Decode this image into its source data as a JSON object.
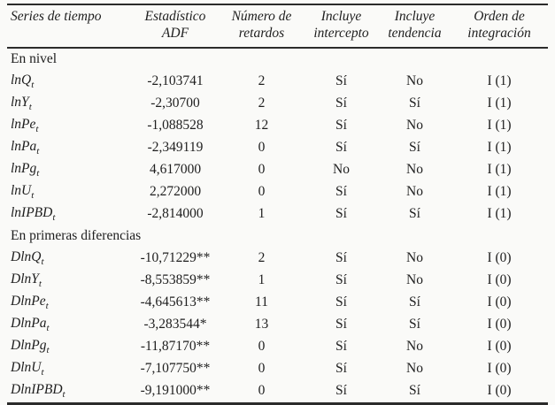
{
  "table": {
    "headers": [
      "Series de tiempo",
      "Estadístico ADF",
      "Número de retardos",
      "Incluye intercepto",
      "Incluye tendencia",
      "Orden de integración"
    ],
    "sections": [
      {
        "label": "En nivel",
        "rows": [
          {
            "series": "lnQ",
            "sub": "t",
            "adf": "-2,103741",
            "lags": "2",
            "intercept": "Sí",
            "trend": "No",
            "order": "I (1)"
          },
          {
            "series": "lnY",
            "sub": "t",
            "adf": "-2,30700",
            "lags": "2",
            "intercept": "Sí",
            "trend": "Sí",
            "order": "I (1)"
          },
          {
            "series": "lnPe",
            "sub": "t",
            "adf": "-1,088528",
            "lags": "12",
            "intercept": "Sí",
            "trend": "No",
            "order": "I (1)"
          },
          {
            "series": "lnPa",
            "sub": "t",
            "adf": "-2,349119",
            "lags": "0",
            "intercept": "Sí",
            "trend": "Sí",
            "order": "I (1)"
          },
          {
            "series": "lnPg",
            "sub": "t",
            "adf": "4,617000",
            "lags": "0",
            "intercept": "No",
            "trend": "No",
            "order": "I (1)"
          },
          {
            "series": "lnU",
            "sub": "t",
            "adf": "2,272000",
            "lags": "0",
            "intercept": "Sí",
            "trend": "No",
            "order": "I (1)"
          },
          {
            "series": "lnIPBD",
            "sub": "t",
            "adf": "-2,814000",
            "lags": "1",
            "intercept": "Sí",
            "trend": "Sí",
            "order": "I (1)"
          }
        ]
      },
      {
        "label": "En primeras diferencias",
        "rows": [
          {
            "series": "DlnQ",
            "sub": "t",
            "adf": "-10,71229**",
            "lags": "2",
            "intercept": "Sí",
            "trend": "No",
            "order": "I (0)"
          },
          {
            "series": "DlnY",
            "sub": "t",
            "adf": "-8,553859**",
            "lags": "1",
            "intercept": "Sí",
            "trend": "No",
            "order": "I (0)"
          },
          {
            "series": "DlnPe",
            "sub": "t",
            "adf": "-4,645613**",
            "lags": "11",
            "intercept": "Sí",
            "trend": "Sí",
            "order": "I (0)"
          },
          {
            "series": "DlnPa",
            "sub": "t",
            "adf": "-3,283544*",
            "lags": "13",
            "intercept": "Sí",
            "trend": "Sí",
            "order": "I (0)"
          },
          {
            "series": "DlnPg",
            "sub": "t",
            "adf": "-11,87170**",
            "lags": "0",
            "intercept": "Sí",
            "trend": "No",
            "order": "I (0)"
          },
          {
            "series": "DlnU",
            "sub": "t",
            "adf": "-7,107750**",
            "lags": "0",
            "intercept": "Sí",
            "trend": "No",
            "order": "I (0)"
          },
          {
            "series": "DlnIPBD",
            "sub": "t",
            "adf": "-9,191000**",
            "lags": "0",
            "intercept": "Sí",
            "trend": "Sí",
            "order": "I (0)"
          }
        ]
      }
    ]
  }
}
